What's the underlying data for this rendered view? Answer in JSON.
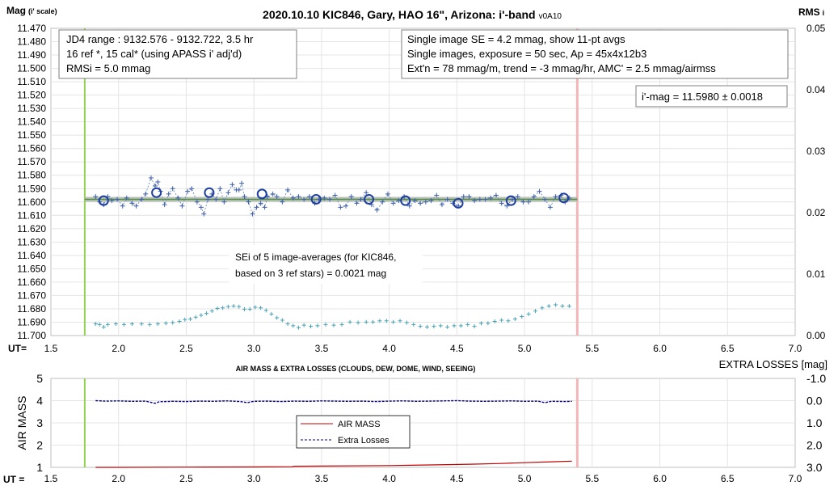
{
  "chart_data": [
    {
      "type": "scatter",
      "title": "2020.10.10 KIC846, Gary, HAO 16\", Arizona: i'-band",
      "version": "v0A10",
      "ylabel_left": "Mag",
      "ylabel_left_sub": "(i' scale)",
      "ylabel_right": "RMS",
      "ylabel_right_sub": "i",
      "ut_label": "UT=",
      "xlim": [
        1.5,
        7.0
      ],
      "x_ticks": [
        "1.5",
        "2.0",
        "2.5",
        "3.0",
        "3.5",
        "4.0",
        "4.5",
        "5.0",
        "5.5",
        "6.0",
        "6.5",
        "7.0"
      ],
      "ylim_left": [
        11.47,
        11.7
      ],
      "y_ticks_left": [
        "11.470",
        "11.480",
        "11.490",
        "11.500",
        "11.510",
        "11.520",
        "11.530",
        "11.540",
        "11.550",
        "11.560",
        "11.570",
        "11.580",
        "11.590",
        "11.600",
        "11.610",
        "11.620",
        "11.630",
        "11.640",
        "11.650",
        "11.660",
        "11.670",
        "11.680",
        "11.690",
        "11.700"
      ],
      "ylim_right": [
        0.0,
        0.05
      ],
      "y_ticks_right": [
        "0.05",
        "0.04",
        "0.03",
        "0.02",
        "0.01",
        "0.00"
      ],
      "start_line_ut": 1.75,
      "end_line_ut": 5.39,
      "fit_mag": 11.598,
      "fit_span": [
        1.75,
        5.39
      ],
      "info_left": [
        "JD4 range : 9132.576 - 9132.722, 3.5  hr",
        "16 ref *, 15 cal* (using APASS i' adj'd)",
        "RMSi = 5.0 mmag"
      ],
      "info_right": [
        "Single image SE = 4.2 mmag, show 11-pt avgs",
        "Single images, exposure = 50 sec, Ap = 45x4x12b3",
        "Ext'n = 78 mmag/m, trend = -3 mmag/hr, AMC' = 2.5 mmag/airmss"
      ],
      "result_label": "i'-mag = 11.5980 ± 0.0018",
      "sei_note": [
        "SEi of 5 image-averages (for KIC846,",
        "based on 3 ref stars) = 0.0021 mag"
      ],
      "series": [
        {
          "name": "",
          "marker": "plus",
          "x": [
            1.83,
            1.86,
            1.89,
            1.92,
            1.95,
            1.99,
            2.03,
            2.06,
            2.1,
            2.13,
            2.17,
            2.2,
            2.24,
            2.27,
            2.29,
            2.31,
            2.34,
            2.37,
            2.4,
            2.44,
            2.47,
            2.51,
            2.54,
            2.58,
            2.61,
            2.63,
            2.66,
            2.69,
            2.72,
            2.75,
            2.78,
            2.81,
            2.84,
            2.87,
            2.89,
            2.91,
            2.93,
            2.96,
            2.99,
            3.02,
            3.05,
            3.08,
            3.1,
            3.14,
            3.17,
            3.21,
            3.25,
            3.29,
            3.33,
            3.37,
            3.41,
            3.45,
            3.48,
            3.52,
            3.56,
            3.6,
            3.64,
            3.68,
            3.72,
            3.76,
            3.79,
            3.83,
            3.87,
            3.91,
            3.95,
            3.99,
            4.03,
            4.07,
            4.11,
            4.15,
            4.19,
            4.23,
            4.27,
            4.31,
            4.35,
            4.39,
            4.43,
            4.47,
            4.51,
            4.55,
            4.59,
            4.63,
            4.67,
            4.71,
            4.75,
            4.79,
            4.83,
            4.87,
            4.91,
            4.95,
            4.99,
            5.03,
            5.07,
            5.11,
            5.15,
            5.19,
            5.23,
            5.27,
            5.3,
            5.33
          ],
          "y": [
            11.596,
            11.6,
            11.602,
            11.596,
            11.599,
            11.598,
            11.603,
            11.597,
            11.601,
            11.603,
            11.598,
            11.594,
            11.582,
            11.588,
            11.585,
            11.592,
            11.602,
            11.594,
            11.59,
            11.597,
            11.603,
            11.592,
            11.59,
            11.6,
            11.604,
            11.609,
            11.598,
            11.594,
            11.598,
            11.59,
            11.6,
            11.593,
            11.587,
            11.591,
            11.591,
            11.586,
            11.596,
            11.6,
            11.609,
            11.604,
            11.601,
            11.604,
            11.596,
            11.594,
            11.596,
            11.6,
            11.591,
            11.597,
            11.596,
            11.598,
            11.596,
            11.601,
            11.598,
            11.597,
            11.598,
            11.595,
            11.604,
            11.603,
            11.596,
            11.601,
            11.598,
            11.593,
            11.602,
            11.606,
            11.6,
            11.594,
            11.601,
            11.599,
            11.596,
            11.603,
            11.599,
            11.601,
            11.6,
            11.599,
            11.595,
            11.602,
            11.598,
            11.601,
            11.603,
            11.596,
            11.596,
            11.599,
            11.598,
            11.598,
            11.597,
            11.595,
            11.601,
            11.603,
            11.598,
            11.596,
            11.6,
            11.6,
            11.596,
            11.592,
            11.598,
            11.604,
            11.596,
            11.595,
            11.6,
            11.597
          ]
        },
        {
          "name": "",
          "marker": "circle",
          "x": [
            1.89,
            2.28,
            2.67,
            3.06,
            3.46,
            3.85,
            4.12,
            4.51,
            4.9,
            5.29
          ],
          "y": [
            11.599,
            11.593,
            11.593,
            11.594,
            11.598,
            11.598,
            11.599,
            11.601,
            11.599,
            11.597
          ]
        },
        {
          "name": "",
          "marker": "plus-rms",
          "axis": "right",
          "x": [
            1.83,
            1.86,
            1.89,
            1.92,
            1.98,
            2.04,
            2.1,
            2.17,
            2.23,
            2.29,
            2.35,
            2.4,
            2.45,
            2.49,
            2.53,
            2.57,
            2.61,
            2.65,
            2.69,
            2.73,
            2.77,
            2.81,
            2.85,
            2.89,
            2.93,
            2.97,
            3.01,
            3.05,
            3.09,
            3.13,
            3.17,
            3.21,
            3.25,
            3.29,
            3.33,
            3.37,
            3.42,
            3.47,
            3.53,
            3.59,
            3.65,
            3.71,
            3.77,
            3.83,
            3.88,
            3.93,
            3.98,
            4.03,
            4.08,
            4.13,
            4.18,
            4.23,
            4.28,
            4.33,
            4.38,
            4.43,
            4.48,
            4.53,
            4.58,
            4.63,
            4.68,
            4.73,
            4.78,
            4.83,
            4.88,
            4.93,
            4.98,
            5.03,
            5.08,
            5.13,
            5.18,
            5.23,
            5.28,
            5.33
          ],
          "y": [
            0.0019,
            0.0018,
            0.0014,
            0.0018,
            0.0019,
            0.0018,
            0.0019,
            0.0019,
            0.0018,
            0.0019,
            0.002,
            0.0021,
            0.0023,
            0.0026,
            0.0027,
            0.003,
            0.0033,
            0.0036,
            0.004,
            0.0044,
            0.0045,
            0.0047,
            0.0048,
            0.0047,
            0.0043,
            0.0043,
            0.0046,
            0.0045,
            0.0041,
            0.0035,
            0.0029,
            0.0025,
            0.0019,
            0.0016,
            0.0013,
            0.0017,
            0.0015,
            0.0016,
            0.0018,
            0.0017,
            0.0018,
            0.0022,
            0.0021,
            0.0022,
            0.0022,
            0.0024,
            0.0024,
            0.0022,
            0.0024,
            0.0021,
            0.0018,
            0.0015,
            0.0014,
            0.0015,
            0.0016,
            0.0014,
            0.0016,
            0.0016,
            0.0018,
            0.0015,
            0.002,
            0.002,
            0.0023,
            0.0025,
            0.0024,
            0.0027,
            0.0031,
            0.0035,
            0.004,
            0.0045,
            0.0048,
            0.005,
            0.0048,
            0.0048
          ]
        }
      ]
    },
    {
      "type": "line",
      "title": "AIR MASS & EXTRA LOSSES (CLOUDS, DEW, DOME, WIND, SEEING)",
      "ylabel_left": "AIR MASS",
      "ylabel_right": "EXTRA LOSSES [mag]",
      "ut_label": "UT =",
      "xlim": [
        1.5,
        7.0
      ],
      "x_ticks": [
        "1.5",
        "2.0",
        "2.5",
        "3.0",
        "3.5",
        "4.0",
        "4.5",
        "5.0",
        "5.5",
        "6.0",
        "6.5",
        "7.0"
      ],
      "ylim_left": [
        1,
        5
      ],
      "y_ticks_left": [
        "5",
        "4",
        "3",
        "2",
        "1"
      ],
      "ylim_right": [
        -1.0,
        3.0
      ],
      "y_ticks_right": [
        "-1.0",
        "0.0",
        "1.0",
        "2.0",
        "3.0"
      ],
      "start_line_ut": 1.75,
      "end_line_ut": 5.39,
      "series": [
        {
          "name": "AIR MASS",
          "color": "#c00000",
          "x": [
            1.83,
            2.0,
            2.5,
            3.0,
            3.28,
            3.3,
            3.5,
            4.0,
            4.3,
            4.6,
            4.8,
            5.0,
            5.2,
            5.35
          ],
          "y": [
            1.0,
            1.0,
            1.01,
            1.02,
            1.03,
            1.05,
            1.06,
            1.08,
            1.11,
            1.14,
            1.17,
            1.21,
            1.25,
            1.28
          ]
        },
        {
          "name": "Extra Losses",
          "color": "#00008b",
          "x": [
            1.83,
            1.9,
            2.0,
            2.1,
            2.2,
            2.27,
            2.3,
            2.4,
            2.5,
            2.6,
            2.7,
            2.8,
            2.9,
            2.95,
            3.0,
            3.1,
            3.2,
            3.3,
            3.4,
            3.5,
            3.6,
            3.7,
            3.8,
            3.9,
            4.0,
            4.1,
            4.2,
            4.3,
            4.4,
            4.5,
            4.6,
            4.7,
            4.8,
            4.9,
            5.0,
            5.1,
            5.15,
            5.2,
            5.3,
            5.35
          ],
          "y": [
            0.0,
            0.02,
            0.01,
            0.03,
            0.02,
            0.12,
            0.05,
            0.03,
            0.04,
            0.02,
            0.03,
            0.01,
            0.04,
            0.09,
            0.03,
            0.02,
            0.04,
            0.02,
            0.03,
            0.01,
            0.02,
            0.03,
            0.02,
            0.04,
            0.02,
            0.01,
            0.03,
            0.02,
            0.01,
            0.0,
            0.02,
            0.03,
            0.02,
            0.01,
            0.03,
            0.02,
            0.09,
            0.03,
            0.04,
            0.03
          ]
        }
      ]
    }
  ]
}
